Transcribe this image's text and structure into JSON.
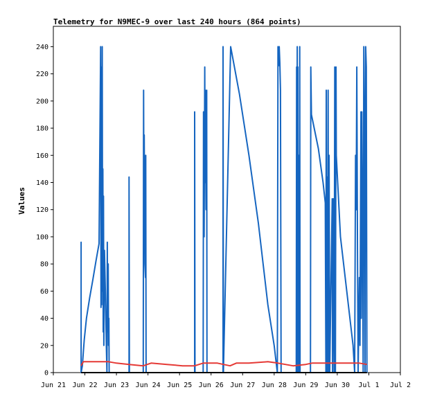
{
  "chart_data": {
    "type": "line",
    "title": "Telemetry for N9MEC-9 over last 240 hours (864 points)",
    "xlabel": "",
    "ylabel": "Values",
    "ylim": [
      0,
      255
    ],
    "yticks": [
      0,
      20,
      40,
      60,
      80,
      100,
      120,
      140,
      160,
      180,
      200,
      220,
      240
    ],
    "xlim": [
      0,
      11
    ],
    "x_ticks": [
      {
        "label": "Jun 21",
        "day": 0
      },
      {
        "label": "Jun 22",
        "day": 1
      },
      {
        "label": "Jun 23",
        "day": 2
      },
      {
        "label": "Jun 24",
        "day": 3
      },
      {
        "label": "Jun 25",
        "day": 4
      },
      {
        "label": "Jun 26",
        "day": 5
      },
      {
        "label": "Jun 27",
        "day": 6
      },
      {
        "label": "Jun 28",
        "day": 7
      },
      {
        "label": "Jun 29",
        "day": 8
      },
      {
        "label": "Jun 30",
        "day": 9
      },
      {
        "label": "Jul 1",
        "day": 10
      },
      {
        "label": "Jul 2",
        "day": 11
      }
    ],
    "grid": false,
    "series": [
      {
        "color": "#1565c0",
        "points": [
          [
            0.88,
            0
          ],
          [
            0.88,
            96
          ],
          [
            0.88,
            0
          ],
          [
            0.92,
            5
          ],
          [
            0.95,
            15
          ],
          [
            0.98,
            24
          ],
          [
            1.05,
            40
          ],
          [
            1.15,
            55
          ],
          [
            1.25,
            68
          ],
          [
            1.35,
            82
          ],
          [
            1.45,
            95
          ],
          [
            1.5,
            240
          ],
          [
            1.51,
            48
          ],
          [
            1.52,
            225
          ],
          [
            1.53,
            50
          ],
          [
            1.55,
            240
          ],
          [
            1.56,
            60
          ],
          [
            1.57,
            150
          ],
          [
            1.58,
            30
          ],
          [
            1.59,
            130
          ],
          [
            1.6,
            20
          ],
          [
            1.62,
            90
          ],
          [
            1.65,
            60
          ],
          [
            1.68,
            20
          ],
          [
            1.7,
            0
          ],
          [
            1.71,
            96
          ],
          [
            1.72,
            30
          ],
          [
            1.74,
            80
          ],
          [
            1.75,
            20
          ],
          [
            1.76,
            40
          ],
          [
            1.77,
            0
          ],
          [
            2.4,
            0
          ],
          [
            2.4,
            144
          ],
          [
            2.41,
            0
          ],
          [
            2.85,
            0
          ],
          [
            2.86,
            208
          ],
          [
            2.87,
            130
          ],
          [
            2.88,
            175
          ],
          [
            2.9,
            80
          ],
          [
            2.92,
            70
          ],
          [
            2.93,
            160
          ],
          [
            2.94,
            0
          ],
          [
            4.48,
            0
          ],
          [
            4.48,
            192
          ],
          [
            4.49,
            0
          ],
          [
            4.75,
            0
          ],
          [
            4.76,
            192
          ],
          [
            4.78,
            100
          ],
          [
            4.8,
            225
          ],
          [
            4.81,
            140
          ],
          [
            4.82,
            208
          ],
          [
            4.83,
            160
          ],
          [
            4.84,
            120
          ],
          [
            4.86,
            208
          ],
          [
            4.87,
            0
          ],
          [
            5.38,
            0
          ],
          [
            5.38,
            240
          ],
          [
            5.39,
            0
          ],
          [
            5.62,
            240
          ],
          [
            5.9,
            205
          ],
          [
            6.2,
            160
          ],
          [
            6.5,
            110
          ],
          [
            6.8,
            50
          ],
          [
            7.0,
            20
          ],
          [
            7.1,
            0
          ],
          [
            7.12,
            240
          ],
          [
            7.14,
            226
          ],
          [
            7.16,
            240
          ],
          [
            7.18,
            228
          ],
          [
            7.2,
            208
          ],
          [
            7.22,
            0
          ],
          [
            7.7,
            0
          ],
          [
            7.71,
            225
          ],
          [
            7.72,
            0
          ],
          [
            7.73,
            240
          ],
          [
            7.74,
            30
          ],
          [
            7.75,
            225
          ],
          [
            7.76,
            0
          ],
          [
            7.78,
            160
          ],
          [
            7.8,
            0
          ],
          [
            7.81,
            240
          ],
          [
            7.82,
            0
          ],
          [
            8.15,
            0
          ],
          [
            8.16,
            225
          ],
          [
            8.18,
            190
          ],
          [
            8.4,
            165
          ],
          [
            8.55,
            140
          ],
          [
            8.62,
            125
          ],
          [
            8.64,
            0
          ],
          [
            8.65,
            208
          ],
          [
            8.66,
            0
          ],
          [
            8.68,
            144
          ],
          [
            8.69,
            0
          ],
          [
            8.71,
            208
          ],
          [
            8.72,
            0
          ],
          [
            8.74,
            160
          ],
          [
            8.76,
            0
          ],
          [
            8.8,
            65
          ],
          [
            8.84,
            128
          ],
          [
            8.85,
            0
          ],
          [
            8.88,
            128
          ],
          [
            8.9,
            0
          ],
          [
            8.92,
            225
          ],
          [
            8.93,
            150
          ],
          [
            8.94,
            0
          ],
          [
            8.96,
            225
          ],
          [
            8.97,
            160
          ],
          [
            9.1,
            100
          ],
          [
            9.3,
            60
          ],
          [
            9.5,
            20
          ],
          [
            9.55,
            0
          ],
          [
            9.58,
            160
          ],
          [
            9.6,
            120
          ],
          [
            9.62,
            225
          ],
          [
            9.64,
            90
          ],
          [
            9.66,
            0
          ],
          [
            9.7,
            70
          ],
          [
            9.72,
            20
          ],
          [
            9.75,
            192
          ],
          [
            9.76,
            40
          ],
          [
            9.78,
            192
          ],
          [
            9.8,
            110
          ],
          [
            9.82,
            0
          ],
          [
            9.84,
            240
          ],
          [
            9.86,
            180
          ],
          [
            9.88,
            0
          ],
          [
            9.9,
            240
          ],
          [
            9.92,
            225
          ],
          [
            9.94,
            0
          ]
        ]
      },
      {
        "color": "#e53935",
        "points": [
          [
            0.88,
            5
          ],
          [
            0.95,
            8
          ],
          [
            1.2,
            8
          ],
          [
            1.5,
            8
          ],
          [
            1.75,
            8
          ],
          [
            2.0,
            7
          ],
          [
            2.4,
            6
          ],
          [
            2.85,
            5
          ],
          [
            3.1,
            7
          ],
          [
            3.6,
            6
          ],
          [
            4.1,
            5
          ],
          [
            4.48,
            5
          ],
          [
            4.75,
            7
          ],
          [
            5.2,
            7
          ],
          [
            5.6,
            5
          ],
          [
            5.8,
            7
          ],
          [
            6.2,
            7
          ],
          [
            6.8,
            8
          ],
          [
            7.12,
            7
          ],
          [
            7.6,
            5
          ],
          [
            8.0,
            6
          ],
          [
            8.2,
            7
          ],
          [
            8.6,
            7
          ],
          [
            9.0,
            7
          ],
          [
            9.4,
            7
          ],
          [
            9.7,
            7
          ],
          [
            9.94,
            6
          ]
        ]
      },
      {
        "color": "#000000",
        "points": [
          [
            0.88,
            0
          ],
          [
            9.94,
            0
          ]
        ]
      }
    ]
  }
}
